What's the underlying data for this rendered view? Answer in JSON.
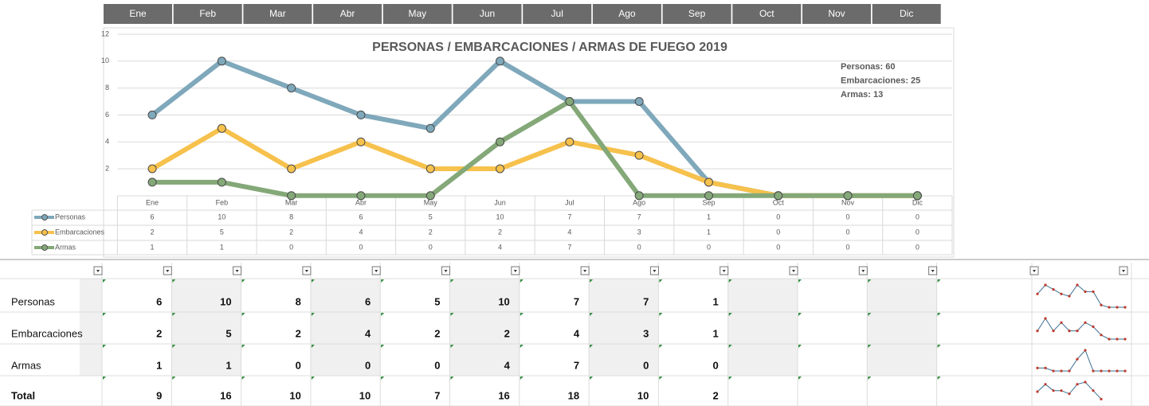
{
  "chart_data": {
    "type": "line",
    "title": "PERSONAS / EMBARCACIONES / ARMAS DE FUEGO 2019",
    "categories": [
      "Ene",
      "Feb",
      "Mar",
      "Abr",
      "May",
      "Jun",
      "Jul",
      "Ago",
      "Sep",
      "Oct",
      "Nov",
      "Dic"
    ],
    "series": [
      {
        "name": "Personas",
        "color": "#7fa8bb",
        "values": [
          6,
          10,
          8,
          6,
          5,
          10,
          7,
          7,
          1,
          0,
          0,
          0
        ]
      },
      {
        "name": "Embarcaciones",
        "color": "#f6c14c",
        "values": [
          2,
          5,
          2,
          4,
          2,
          2,
          4,
          3,
          1,
          0,
          0,
          0
        ]
      },
      {
        "name": "Armas",
        "color": "#84a878",
        "values": [
          1,
          1,
          0,
          0,
          0,
          4,
          7,
          0,
          0,
          0,
          0,
          0
        ]
      }
    ],
    "ylim": [
      0,
      12
    ],
    "yticks": [
      2,
      4,
      6,
      8,
      10,
      12
    ],
    "grid": true,
    "annotations": [
      "Personas: 60",
      "Embarcaciones: 25",
      "Armas: 13"
    ]
  },
  "header": {
    "months": [
      "Ene",
      "Feb",
      "Mar",
      "Abr",
      "May",
      "Jun",
      "Jul",
      "Ago",
      "Sep",
      "Oct",
      "Nov",
      "Dic"
    ]
  },
  "table": {
    "rows": [
      [
        "Personas",
        6,
        10,
        8,
        6,
        5,
        10,
        7,
        7,
        1
      ],
      [
        "Embarcaciones",
        2,
        5,
        2,
        4,
        2,
        2,
        4,
        3,
        1
      ],
      [
        "Armas",
        1,
        1,
        0,
        0,
        0,
        4,
        7,
        0,
        0
      ],
      [
        "Total",
        9,
        16,
        10,
        10,
        7,
        16,
        18,
        10,
        2
      ]
    ]
  }
}
